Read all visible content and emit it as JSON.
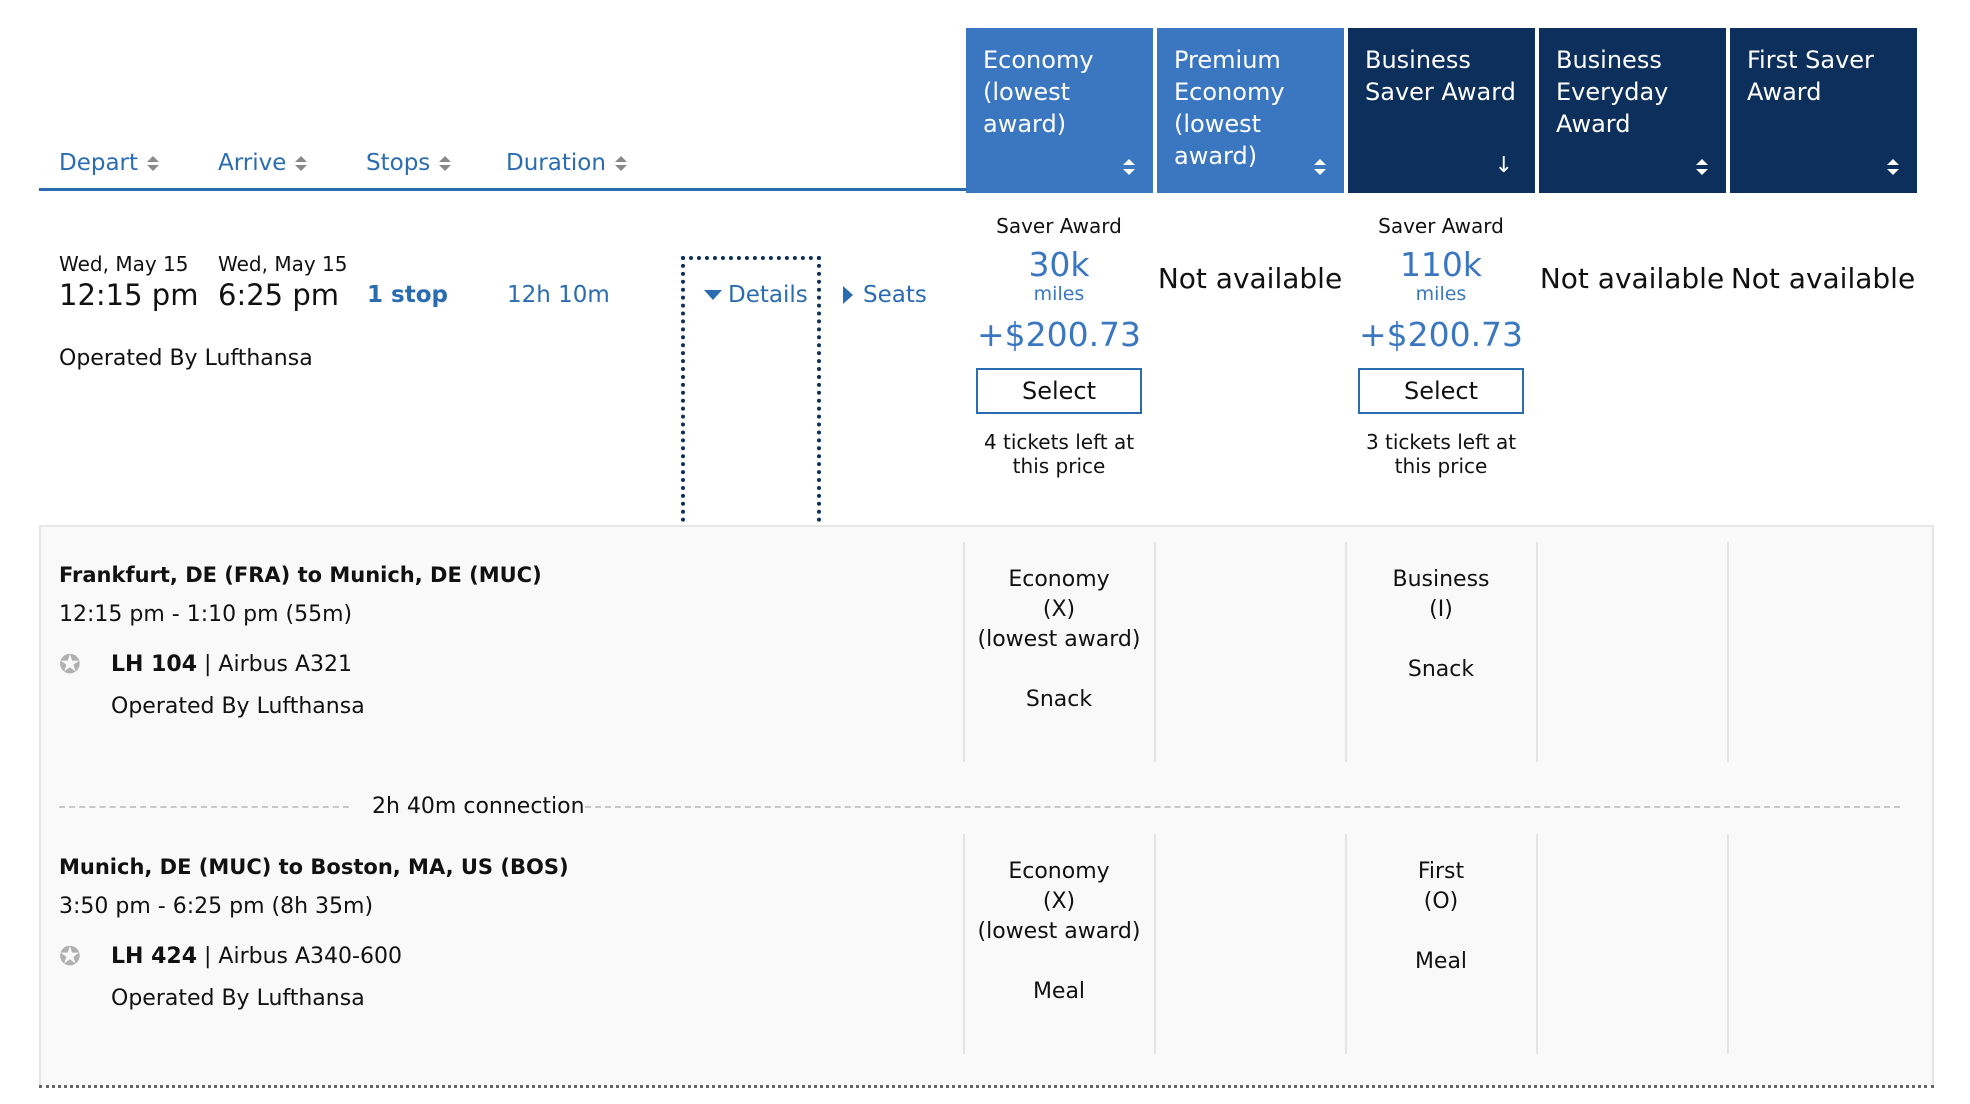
{
  "table_header": {
    "sort_columns": [
      "Depart",
      "Arrive",
      "Stops",
      "Duration"
    ],
    "fare_columns": [
      {
        "label": "Economy (lowest award)",
        "sort": "both"
      },
      {
        "label": "Premium Economy (lowest award)",
        "sort": "both"
      },
      {
        "label": "Business Saver Award",
        "sort": "down"
      },
      {
        "label": "Business Everyday Award",
        "sort": "both"
      },
      {
        "label": "First Saver Award",
        "sort": "both"
      }
    ]
  },
  "flight": {
    "depart_date": "Wed, May 15",
    "depart_time": "12:15 pm",
    "arrive_date": "Wed, May 15",
    "arrive_time": "6:25 pm",
    "stops": "1 stop",
    "duration": "12h 10m",
    "operated_by": "Operated By Lufthansa",
    "details_label": "Details",
    "seats_label": "Seats"
  },
  "fares": [
    {
      "type": "available",
      "label": "Saver Award",
      "miles": "30k",
      "unit": "miles",
      "tax": "+$200.73",
      "button": "Select",
      "remaining": "4 tickets left at this price"
    },
    {
      "type": "na",
      "text": "Not available"
    },
    {
      "type": "available",
      "label": "Saver Award",
      "miles": "110k",
      "unit": "miles",
      "tax": "+$200.73",
      "button": "Select",
      "remaining": "3 tickets left at this price"
    },
    {
      "type": "na",
      "text": "Not available"
    },
    {
      "type": "na",
      "text": "Not available"
    }
  ],
  "segments": [
    {
      "route": "Frankfurt, DE (FRA) to Munich, DE (MUC)",
      "times": "12:15 pm - 1:10 pm (55m)",
      "flight_no": "LH 104",
      "aircraft": "Airbus A321",
      "operated_by": "Operated By Lufthansa",
      "cabins": [
        {
          "col": 0,
          "lines": [
            "Economy",
            "(X)",
            "(lowest award)",
            "",
            "Snack"
          ]
        },
        {
          "col": 2,
          "lines": [
            "Business",
            "(I)",
            "",
            "Snack"
          ]
        }
      ]
    },
    {
      "route": "Munich, DE (MUC) to Boston, MA, US (BOS)",
      "times": "3:50 pm - 6:25 pm (8h 35m)",
      "flight_no": "LH 424",
      "aircraft": "Airbus A340-600",
      "operated_by": "Operated By Lufthansa",
      "cabins": [
        {
          "col": 0,
          "lines": [
            "Economy",
            "(X)",
            "(lowest award)",
            "",
            "Meal"
          ]
        },
        {
          "col": 2,
          "lines": [
            "First",
            "(O)",
            "",
            "Meal"
          ]
        }
      ]
    }
  ],
  "connection": "2h 40m connection",
  "colors": {
    "brand_blue": "#3b77c0",
    "dark_navy": "#0c2f5c",
    "link_blue": "#2b6cb0"
  },
  "icons": [
    "sort-arrows-icon",
    "sort-down-icon",
    "caret-down-icon",
    "caret-right-icon",
    "star-alliance-icon"
  ]
}
